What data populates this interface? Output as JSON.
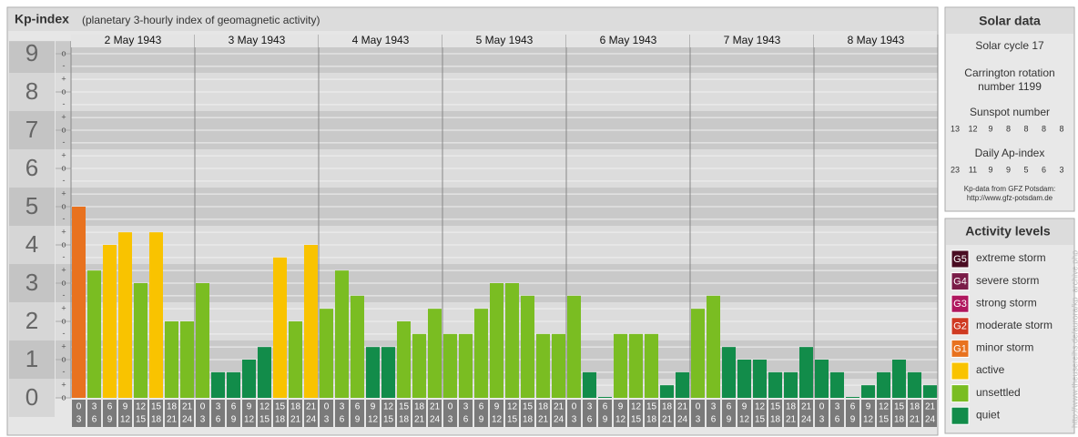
{
  "header": {
    "title": "Kp-index",
    "subtitle": "(planetary 3-hourly index of geomagnetic activity)"
  },
  "chart_data": {
    "type": "bar",
    "ylim": [
      0,
      9.33
    ],
    "yticks": [
      0,
      1,
      2,
      3,
      4,
      5,
      6,
      7,
      8,
      9
    ],
    "minor_ticks": [
      {
        "value": 0,
        "label": "o"
      },
      {
        "value": 0.33,
        "label": "+"
      },
      {
        "value": 0.67,
        "label": "-"
      },
      {
        "value": 1,
        "label": "o"
      },
      {
        "value": 1.33,
        "label": "+"
      },
      {
        "value": 1.67,
        "label": "-"
      },
      {
        "value": 2,
        "label": "o"
      },
      {
        "value": 2.33,
        "label": "+"
      },
      {
        "value": 2.67,
        "label": "-"
      },
      {
        "value": 3,
        "label": "o"
      },
      {
        "value": 3.33,
        "label": "+"
      },
      {
        "value": 3.67,
        "label": "-"
      },
      {
        "value": 4,
        "label": "o"
      },
      {
        "value": 4.33,
        "label": "+"
      },
      {
        "value": 4.67,
        "label": "-"
      },
      {
        "value": 5,
        "label": "o"
      },
      {
        "value": 5.33,
        "label": "+"
      },
      {
        "value": 5.67,
        "label": "-"
      },
      {
        "value": 6,
        "label": "o"
      },
      {
        "value": 6.33,
        "label": "+"
      },
      {
        "value": 6.67,
        "label": "-"
      },
      {
        "value": 7,
        "label": "o"
      },
      {
        "value": 7.33,
        "label": "+"
      },
      {
        "value": 7.67,
        "label": "-"
      },
      {
        "value": 8,
        "label": "o"
      },
      {
        "value": 8.33,
        "label": "+"
      },
      {
        "value": 8.67,
        "label": "-"
      },
      {
        "value": 9,
        "label": "o"
      }
    ],
    "intervals": [
      [
        0,
        3
      ],
      [
        3,
        6
      ],
      [
        6,
        9
      ],
      [
        9,
        12
      ],
      [
        12,
        15
      ],
      [
        15,
        18
      ],
      [
        18,
        21
      ],
      [
        21,
        24
      ]
    ],
    "days": [
      {
        "label": "2 May 1943",
        "values": [
          5,
          3.33,
          4,
          4.33,
          3,
          4.33,
          2,
          2
        ],
        "colors": [
          "#e8721f",
          "#7abd22",
          "#f9c300",
          "#f9c300",
          "#7abd22",
          "#f9c300",
          "#7abd22",
          "#7abd22"
        ]
      },
      {
        "label": "3 May 1943",
        "values": [
          3,
          0.67,
          0.67,
          1,
          1.33,
          3.67,
          2,
          4
        ],
        "colors": [
          "#7abd22",
          "#128c4a",
          "#128c4a",
          "#128c4a",
          "#128c4a",
          "#f9c300",
          "#7abd22",
          "#f9c300"
        ]
      },
      {
        "label": "4 May 1943",
        "values": [
          2.33,
          3.33,
          2.67,
          1.33,
          1.33,
          2,
          1.67,
          2.33
        ],
        "colors": [
          "#7abd22",
          "#7abd22",
          "#7abd22",
          "#128c4a",
          "#128c4a",
          "#7abd22",
          "#7abd22",
          "#7abd22"
        ]
      },
      {
        "label": "5 May 1943",
        "values": [
          1.67,
          1.67,
          2.33,
          3,
          3,
          2.67,
          1.67,
          1.67
        ],
        "colors": [
          "#7abd22",
          "#7abd22",
          "#7abd22",
          "#7abd22",
          "#7abd22",
          "#7abd22",
          "#7abd22",
          "#7abd22"
        ]
      },
      {
        "label": "6 May 1943",
        "values": [
          2.67,
          0.67,
          0,
          1.67,
          1.67,
          1.67,
          0.33,
          0.67
        ],
        "colors": [
          "#7abd22",
          "#128c4a",
          "#128c4a",
          "#7abd22",
          "#7abd22",
          "#7abd22",
          "#128c4a",
          "#128c4a"
        ]
      },
      {
        "label": "7 May 1943",
        "values": [
          2.33,
          2.67,
          1.33,
          1,
          1,
          0.67,
          0.67,
          1.33
        ],
        "colors": [
          "#7abd22",
          "#7abd22",
          "#128c4a",
          "#128c4a",
          "#128c4a",
          "#128c4a",
          "#128c4a",
          "#128c4a"
        ]
      },
      {
        "label": "8 May 1943",
        "values": [
          1,
          0.67,
          0,
          0.33,
          0.67,
          1,
          0.67,
          0.33
        ],
        "colors": [
          "#128c4a",
          "#128c4a",
          "#128c4a",
          "#128c4a",
          "#128c4a",
          "#128c4a",
          "#128c4a",
          "#128c4a"
        ]
      }
    ]
  },
  "solar_data": {
    "title": "Solar data",
    "cycle": "Solar cycle 17",
    "carrington": [
      "Carrington rotation",
      "number 1199"
    ],
    "sunspot_title": "Sunspot number",
    "sunspot": [
      13,
      12,
      9,
      8,
      8,
      8,
      8
    ],
    "ap_title": "Daily Ap-index",
    "ap": [
      23,
      11,
      9,
      9,
      5,
      6,
      3
    ],
    "source": [
      "Kp-data from GFZ Potsdam:",
      "http://www.gfz-potsdam.de"
    ]
  },
  "activity_levels": {
    "title": "Activity levels",
    "items": [
      {
        "badge": "G5",
        "label": "extreme storm",
        "color": "#4a0c22"
      },
      {
        "badge": "G4",
        "label": "severe storm",
        "color": "#7a1c48"
      },
      {
        "badge": "G3",
        "label": "strong storm",
        "color": "#b0175e"
      },
      {
        "badge": "G2",
        "label": "moderate storm",
        "color": "#cf3a22"
      },
      {
        "badge": "G1",
        "label": "minor storm",
        "color": "#e8721f"
      },
      {
        "label": "active",
        "color": "#f9c300"
      },
      {
        "label": "unsettled",
        "color": "#7abd22"
      },
      {
        "label": "quiet",
        "color": "#128c4a"
      }
    ]
  },
  "watermark": "http://www.theusereihs.de/aurora/kp_archive.php"
}
